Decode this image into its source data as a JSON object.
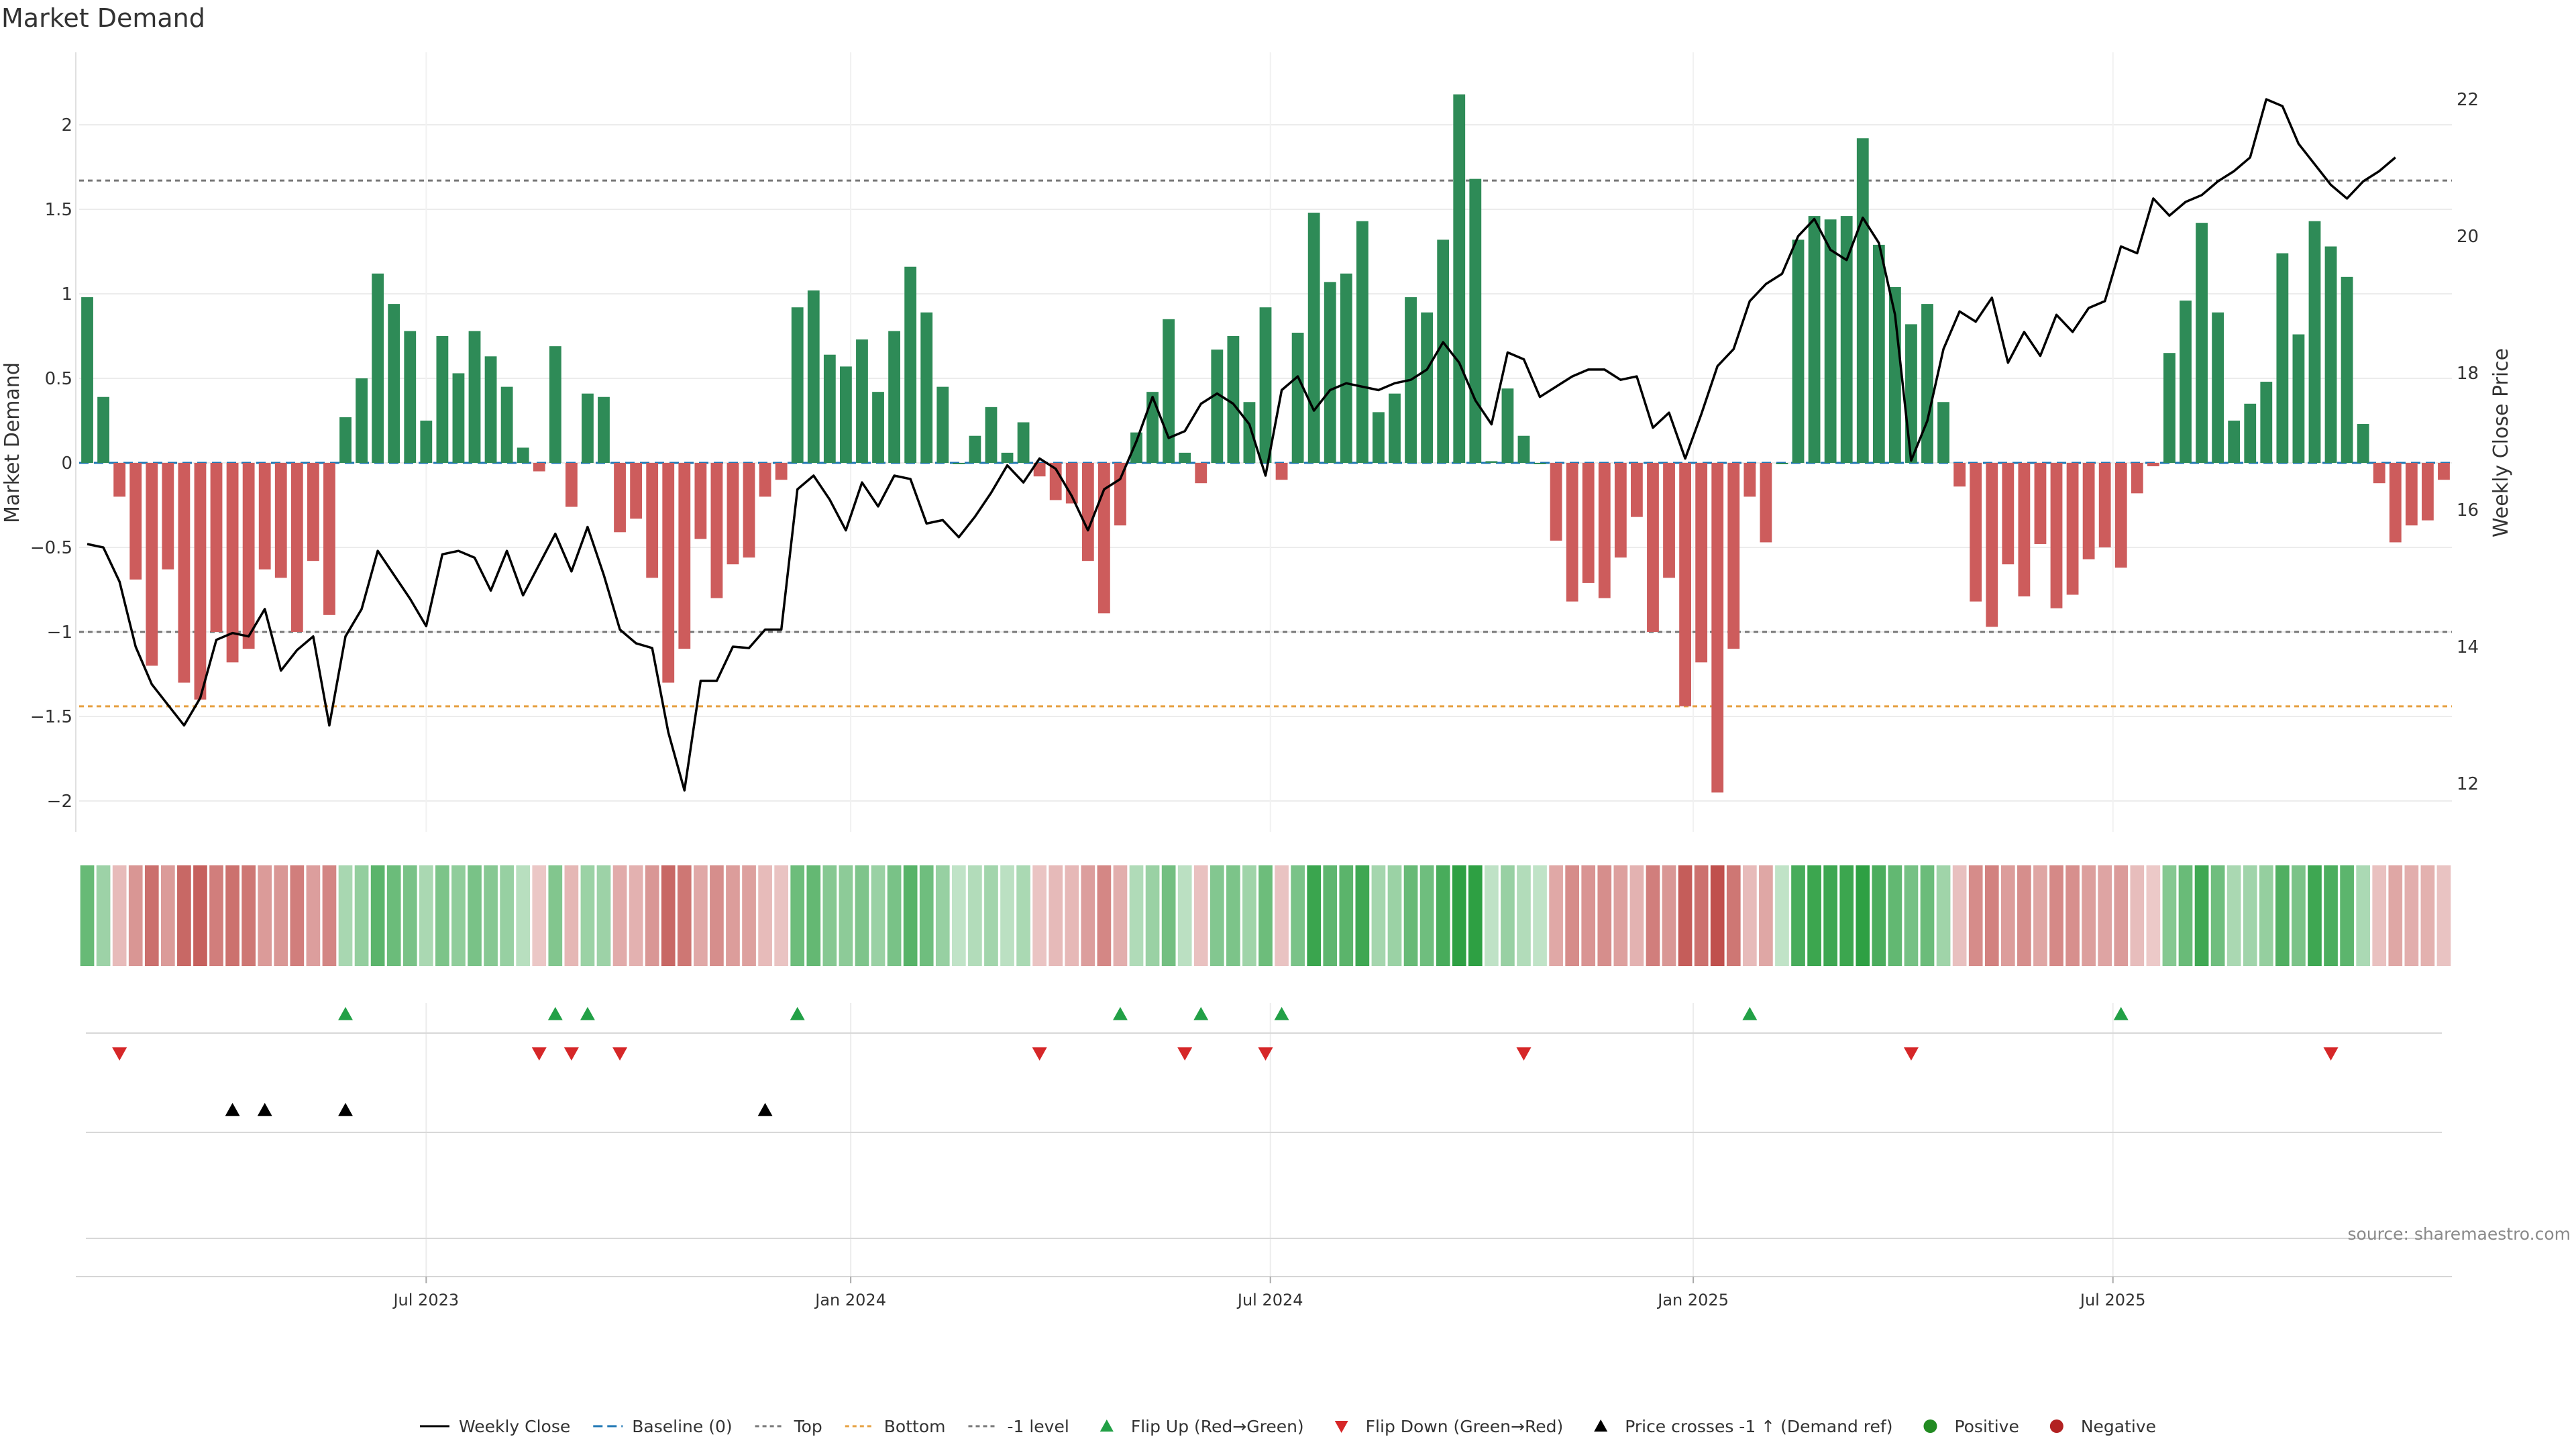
{
  "chart_data": {
    "type": "bar",
    "title": "Market Demand",
    "ylabel": "Market Demand",
    "ylabel_right": "Weekly Close Price",
    "ylim": [
      -2.15,
      2.4
    ],
    "ylim_right": [
      11.2,
      23.1
    ],
    "yticks": [
      {
        "v": 2,
        "label": "2"
      },
      {
        "v": 1.5,
        "label": "1.5"
      },
      {
        "v": 1,
        "label": "1"
      },
      {
        "v": 0.5,
        "label": "0.5"
      },
      {
        "v": 0,
        "label": "0"
      },
      {
        "v": -0.5,
        "label": "−0.5"
      },
      {
        "v": -1,
        "label": "−1"
      },
      {
        "v": -1.5,
        "label": "−1.5"
      },
      {
        "v": -2,
        "label": "−2"
      }
    ],
    "yticks_right": [
      12,
      14,
      16,
      18,
      20,
      22
    ],
    "x_range": [
      0,
      144
    ],
    "x_labels": [
      {
        "week": 21.5,
        "label": "Jul 2023"
      },
      {
        "week": 47.8,
        "label": "Jan 2024"
      },
      {
        "week": 73.8,
        "label": "Jul 2024"
      },
      {
        "week": 100.0,
        "label": "Jan 2025"
      },
      {
        "week": 126.0,
        "label": "Jul 2025"
      }
    ],
    "reference_lines": {
      "top": 1.67,
      "bottom": -1.44,
      "minus_one": -1.0,
      "baseline": 0
    },
    "series": [
      {
        "name": "Market Demand",
        "kind": "bar",
        "values": [
          0.98,
          0.39,
          -0.2,
          -0.69,
          -1.2,
          -0.63,
          -1.3,
          -1.4,
          -1.0,
          -1.18,
          -1.1,
          -0.63,
          -0.68,
          -1.0,
          -0.58,
          -0.9,
          0.27,
          0.5,
          1.12,
          0.94,
          0.78,
          0.25,
          0.75,
          0.53,
          0.78,
          0.63,
          0.45,
          0.09,
          -0.05,
          0.69,
          -0.26,
          0.41,
          0.39,
          -0.41,
          -0.33,
          -0.68,
          -1.3,
          -1.1,
          -0.45,
          -0.8,
          -0.6,
          -0.56,
          -0.2,
          -0.1,
          0.92,
          1.02,
          0.64,
          0.57,
          0.73,
          0.42,
          0.78,
          1.16,
          0.89,
          0.45,
          0.0,
          0.16,
          0.33,
          0.06,
          0.24,
          -0.08,
          -0.22,
          -0.24,
          -0.58,
          -0.89,
          -0.37,
          0.18,
          0.42,
          0.85,
          0.06,
          -0.12,
          0.67,
          0.75,
          0.36,
          0.92,
          -0.1,
          0.77,
          1.48,
          1.07,
          1.12,
          1.43,
          0.3,
          0.41,
          0.98,
          0.89,
          1.32,
          2.18,
          1.68,
          0.01,
          0.44,
          0.16,
          0.0,
          -0.46,
          -0.82,
          -0.71,
          -0.8,
          -0.56,
          -0.32,
          -1.0,
          -0.68,
          -1.44,
          -1.18,
          -1.95,
          -1.1,
          -0.2,
          -0.47,
          0.0,
          1.32,
          1.46,
          1.44,
          1.46,
          1.92,
          1.29,
          1.04,
          0.82,
          0.94,
          0.36,
          -0.14,
          -0.82,
          -0.97,
          -0.6,
          -0.79,
          -0.48,
          -0.86,
          -0.78,
          -0.57,
          -0.5,
          -0.62,
          -0.18,
          -0.02,
          0.65,
          0.96,
          1.42,
          0.89,
          0.25,
          0.35,
          0.48,
          1.24,
          0.76,
          1.43,
          1.28,
          1.1,
          0.23,
          -0.12,
          -0.47,
          -0.37,
          -0.34,
          -0.1
        ]
      },
      {
        "name": "Weekly Close",
        "kind": "line",
        "values": [
          15.5,
          15.45,
          14.95,
          14.0,
          13.45,
          13.15,
          12.85,
          13.25,
          14.1,
          14.2,
          14.15,
          14.55,
          13.65,
          13.95,
          14.15,
          12.85,
          14.15,
          14.55,
          15.4,
          15.05,
          14.7,
          14.3,
          15.35,
          15.4,
          15.3,
          14.82,
          15.4,
          14.75,
          15.2,
          15.65,
          15.1,
          15.75,
          15.05,
          14.25,
          14.05,
          13.98,
          12.75,
          11.9,
          13.5,
          13.5,
          14.0,
          13.98,
          14.25,
          14.25,
          16.3,
          16.5,
          16.15,
          15.7,
          16.4,
          16.05,
          16.5,
          16.45,
          15.8,
          15.85,
          15.6,
          15.9,
          16.25,
          16.65,
          16.4,
          16.75,
          16.6,
          16.2,
          15.7,
          16.3,
          16.45,
          17.0,
          17.65,
          17.05,
          17.15,
          17.55,
          17.7,
          17.55,
          17.25,
          16.5,
          17.75,
          17.95,
          17.45,
          17.75,
          17.85,
          17.8,
          17.75,
          17.85,
          17.9,
          18.05,
          18.45,
          18.15,
          17.6,
          17.25,
          18.3,
          18.2,
          17.65,
          17.8,
          17.95,
          18.05,
          18.05,
          17.9,
          17.95,
          17.2,
          17.42,
          16.75,
          17.4,
          18.1,
          18.35,
          19.05,
          19.3,
          19.45,
          20.0,
          20.25,
          19.8,
          19.65,
          20.27,
          19.9,
          18.85,
          16.72,
          17.3,
          18.35,
          18.9,
          18.75,
          19.1,
          18.15,
          18.6,
          18.25,
          18.85,
          18.6,
          18.95,
          19.05,
          19.85,
          19.75,
          20.55,
          20.3,
          20.5,
          20.6,
          20.8,
          20.95,
          21.15,
          22.0,
          21.9,
          21.35,
          21.05,
          20.75,
          20.55,
          20.8,
          20.95,
          21.15
        ]
      }
    ],
    "color_strip": {
      "source": "Market Demand"
    },
    "markers": {
      "flip_up_weeks": [
        16,
        29,
        31,
        44,
        64,
        69,
        74,
        103,
        126
      ],
      "flip_down_weeks": [
        2,
        28,
        30,
        33,
        59,
        68,
        73,
        89,
        113,
        139
      ],
      "price_cross_weeks": [
        9,
        11,
        16,
        42
      ]
    },
    "colors": {
      "positive": "#2e8b57",
      "negative": "#cd5c5c",
      "close_line": "#000000",
      "top_line": "#777777",
      "bottom_line": "#e6a040",
      "baseline": "#1f77b4",
      "flip_up": "#22a046",
      "flip_down": "#d62728",
      "price_cross": "#000000",
      "legend_positive": "#228b22",
      "legend_negative": "#b22222"
    },
    "legend": [
      {
        "label": "Weekly Close",
        "symbol": "line-solid",
        "color": "#000000"
      },
      {
        "label": "Baseline (0)",
        "symbol": "line-dashed",
        "color": "#1f77b4"
      },
      {
        "label": "Top",
        "symbol": "line-dotted",
        "color": "#777777"
      },
      {
        "label": "Bottom",
        "symbol": "line-dotted",
        "color": "#e6a040"
      },
      {
        "label": "-1 level",
        "symbol": "line-dotted",
        "color": "#777777"
      },
      {
        "label": "Flip Up (Red→Green)",
        "symbol": "triangle-up",
        "color": "#22a046"
      },
      {
        "label": "Flip Down (Green→Red)",
        "symbol": "triangle-down",
        "color": "#d62728"
      },
      {
        "label": "Price crosses -1 ↑ (Demand ref)",
        "symbol": "triangle-up",
        "color": "#000000"
      },
      {
        "label": "Positive",
        "symbol": "circle",
        "color": "#228b22"
      },
      {
        "label": "Negative",
        "symbol": "circle",
        "color": "#b22222"
      }
    ],
    "legend_placement": "bottom-center",
    "grid": true,
    "source_note": "source: sharemaestro.com"
  }
}
